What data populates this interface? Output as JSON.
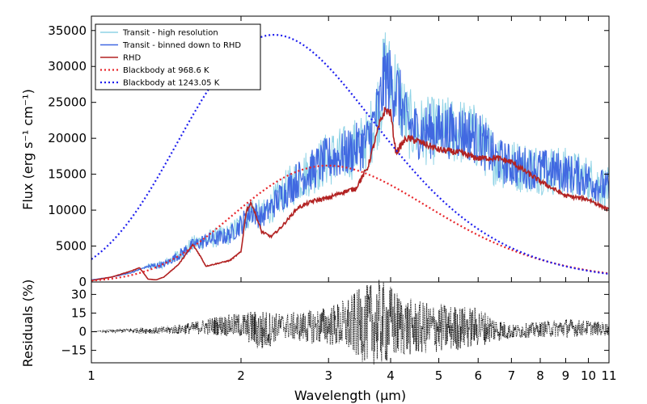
{
  "chart_data": [
    {
      "type": "line",
      "xscale": "log",
      "xlim": [
        1,
        11
      ],
      "ylim": [
        0,
        37000
      ],
      "xlabel": "Wavelength  (µm)",
      "ylabel": "Flux (erg s⁻¹ cm⁻¹)",
      "x_ticks": [
        1,
        2,
        3,
        4,
        5,
        6,
        7,
        8,
        9,
        10,
        11
      ],
      "x_tick_labels": [
        "1",
        "2",
        "3",
        "4",
        "5",
        "6",
        "7",
        "8",
        "9",
        "10",
        "11"
      ],
      "y_ticks": [
        0,
        5000,
        10000,
        15000,
        20000,
        25000,
        30000,
        35000
      ],
      "y_tick_labels": [
        "0",
        "5000",
        "10000",
        "15000",
        "20000",
        "25000",
        "30000",
        "35000"
      ],
      "legend_position": "top-left",
      "series": [
        {
          "name": "Transit - high resolution",
          "color": "#8fd3e6",
          "style": "solid",
          "x": [
            1.0,
            1.1,
            1.2,
            1.3,
            1.4,
            1.5,
            1.6,
            1.7,
            1.8,
            1.9,
            2.0,
            2.1,
            2.2,
            2.4,
            2.6,
            2.8,
            3.0,
            3.2,
            3.4,
            3.6,
            3.8,
            3.9,
            4.0,
            4.1,
            4.3,
            4.5,
            5.0,
            5.5,
            6.0,
            6.5,
            7.0,
            8.0,
            9.0,
            10.0,
            11.0
          ],
          "y": [
            300,
            700,
            1300,
            2200,
            2600,
            4000,
            5500,
            6200,
            6500,
            7000,
            8500,
            10500,
            9500,
            12500,
            15000,
            16500,
            18000,
            18500,
            19500,
            20500,
            26000,
            31000,
            29000,
            28500,
            23500,
            22000,
            22000,
            22000,
            21000,
            18000,
            17000,
            16500,
            16000,
            15000,
            13500
          ]
        },
        {
          "name": "Transit - binned down to RHD",
          "color": "#4169e1",
          "style": "solid",
          "x": [
            1.0,
            1.1,
            1.2,
            1.3,
            1.4,
            1.5,
            1.6,
            1.7,
            1.8,
            1.9,
            2.0,
            2.1,
            2.2,
            2.4,
            2.6,
            2.8,
            3.0,
            3.2,
            3.4,
            3.6,
            3.8,
            3.9,
            4.0,
            4.1,
            4.3,
            4.5,
            5.0,
            5.5,
            6.0,
            6.5,
            7.0,
            8.0,
            9.0,
            10.0,
            11.0
          ],
          "y": [
            300,
            700,
            1300,
            2200,
            2500,
            3900,
            5300,
            6000,
            6300,
            6800,
            8300,
            10300,
            9300,
            12300,
            14800,
            16300,
            17800,
            18300,
            19300,
            20300,
            25500,
            30000,
            28500,
            28000,
            23000,
            21800,
            21800,
            21800,
            20800,
            17800,
            16800,
            16300,
            15800,
            14800,
            13300
          ]
        },
        {
          "name": "RHD",
          "color": "#b22222",
          "style": "solid",
          "x": [
            1.0,
            1.1,
            1.2,
            1.25,
            1.3,
            1.35,
            1.4,
            1.5,
            1.6,
            1.65,
            1.7,
            1.8,
            1.9,
            2.0,
            2.05,
            2.1,
            2.2,
            2.3,
            2.4,
            2.6,
            2.8,
            3.0,
            3.2,
            3.4,
            3.6,
            3.8,
            3.9,
            4.0,
            4.1,
            4.3,
            4.5,
            5.0,
            5.5,
            6.0,
            6.5,
            7.0,
            8.0,
            9.0,
            10.0,
            11.0
          ],
          "y": [
            200,
            700,
            1500,
            2000,
            400,
            300,
            700,
            2500,
            5200,
            3800,
            2200,
            2600,
            3000,
            4200,
            10000,
            11000,
            7000,
            6300,
            7500,
            10300,
            11300,
            11700,
            12500,
            13000,
            16000,
            22000,
            24000,
            23500,
            18000,
            20000,
            19700,
            18400,
            18000,
            17200,
            17300,
            16700,
            14000,
            12000,
            11500,
            10000
          ]
        },
        {
          "name": "Blackbody at 968.6 K",
          "color": "#e8262b",
          "style": "dotted",
          "temperature_K": 968.6,
          "peak_flux": 16200
        },
        {
          "name": "Blackbody at 1243.05 K",
          "color": "#1f1fee",
          "style": "dotted",
          "temperature_K": 1243.05,
          "peak_flux": 34400
        }
      ]
    },
    {
      "type": "scatter",
      "xscale": "log",
      "xlim": [
        1,
        11
      ],
      "ylim": [
        -25,
        40
      ],
      "xlabel": "Wavelength  (µm)",
      "ylabel": "Residuals (%)",
      "y_ticks": [
        -15,
        0,
        15,
        30
      ],
      "y_tick_labels": [
        "−15",
        "0",
        "15",
        "30"
      ],
      "series": [
        {
          "name": "",
          "color": "#000000",
          "style": "dotted",
          "x": [
            1.0,
            1.2,
            1.4,
            1.6,
            1.8,
            2.0,
            2.1,
            2.2,
            2.4,
            2.6,
            2.8,
            3.0,
            3.2,
            3.5,
            3.8,
            4.0,
            4.2,
            4.5,
            5.0,
            5.5,
            6.0,
            6.5,
            7.0,
            8.0,
            9.0,
            10.0,
            11.0
          ],
          "envelope": [
            0,
            2,
            3,
            5,
            8,
            10,
            14,
            18,
            10,
            12,
            14,
            16,
            20,
            30,
            35,
            32,
            25,
            22,
            20,
            18,
            16,
            10,
            6,
            6,
            8,
            6,
            5
          ],
          "center": [
            0,
            1,
            1,
            3,
            5,
            5,
            3,
            0,
            5,
            4,
            4,
            5,
            5,
            6,
            7,
            6,
            5,
            3,
            3,
            3,
            4,
            2,
            0,
            2,
            3,
            3,
            2
          ]
        }
      ]
    }
  ]
}
